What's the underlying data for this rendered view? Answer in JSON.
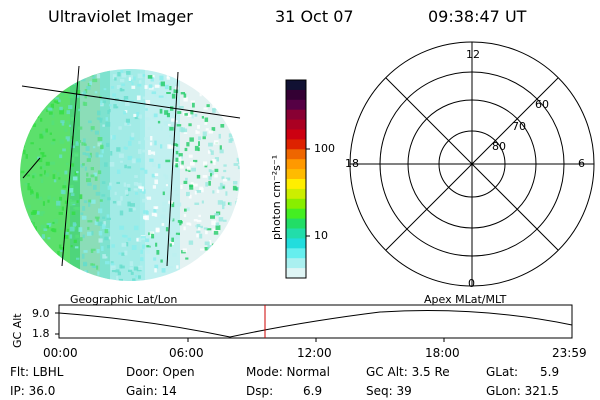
{
  "header": {
    "instrument": "Ultraviolet Imager",
    "date": "31 Oct 07",
    "time": "09:38:47 UT"
  },
  "imager": {
    "label": "Geographic Lat/Lon"
  },
  "colorbar": {
    "label": "photon cm⁻²s⁻¹",
    "ticks": [
      "100",
      "10"
    ],
    "colors": [
      "#111133",
      "#330033",
      "#550044",
      "#880033",
      "#aa0022",
      "#cc0011",
      "#dd2200",
      "#ee6600",
      "#ff9900",
      "#ffbb00",
      "#ffee00",
      "#ccee00",
      "#88ee00",
      "#44ee22",
      "#22dd66",
      "#22ddaa",
      "#22dddd",
      "#66eeee",
      "#aaf0f0",
      "#dff5f5"
    ]
  },
  "polar": {
    "label": "Apex MLat/MLT",
    "mlt_labels": {
      "top": "12",
      "left": "18",
      "right": "6",
      "bottom": "0"
    },
    "lat_labels": [
      "60",
      "70",
      "80"
    ]
  },
  "altitude": {
    "axis_label": "GC Alt",
    "ticks": [
      "9.0",
      "1.8"
    ],
    "time_labels": [
      "00:00",
      "06:00",
      "12:00",
      "18:00",
      "23:59"
    ]
  },
  "info": {
    "filter": "Flt: LBHL",
    "door": "Door: Open",
    "mode": "Mode: Normal",
    "gc_alt": "GC Alt: 3.5 Re",
    "glat": "GLat:",
    "glat_val": "5.9",
    "ip": "IP: 36.0",
    "gain": "Gain: 14",
    "dsp": "Dsp:",
    "dsp_val": "6.9",
    "seq": "Seq: 39",
    "glon": "GLon: 321.5"
  }
}
